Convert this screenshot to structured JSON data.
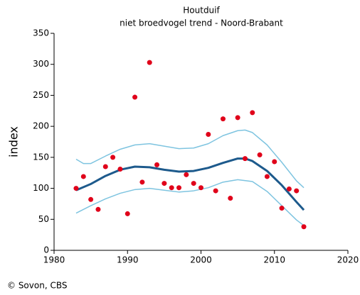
{
  "chart_data": {
    "type": "scatter",
    "title": "Houtduif",
    "subtitle": "niet broedvogel trend - Noord-Brabant",
    "y_label": "index",
    "source": "© Sovon, CBS",
    "xlim": [
      1980,
      2020
    ],
    "xticks": [
      1980,
      1990,
      2000,
      2010,
      2020
    ],
    "ylim": [
      0,
      350
    ],
    "yticks": [
      0,
      50,
      100,
      150,
      200,
      250,
      300,
      350
    ],
    "series": [
      {
        "style": "markers",
        "color": "#e0001a",
        "x": [
          1983,
          1984,
          1985,
          1986,
          1987,
          1988,
          1989,
          1990,
          1991,
          1992,
          1993,
          1994,
          1995,
          1996,
          1997,
          1998,
          1999,
          2000,
          2001,
          2002,
          2003,
          2004,
          2005,
          2006,
          2007,
          2008,
          2009,
          2010,
          2011,
          2012,
          2013,
          2014
        ],
        "values": [
          100,
          119,
          82,
          66,
          135,
          150,
          131,
          59,
          247,
          110,
          303,
          138,
          108,
          101,
          101,
          122,
          108,
          101,
          187,
          96,
          212,
          84,
          214,
          148,
          222,
          154,
          119,
          143,
          68,
          99,
          96,
          38
        ]
      },
      {
        "style": "line",
        "color": "#7ec4e0",
        "width": 1.5,
        "x": [
          1983,
          1984,
          1985,
          1987,
          1989,
          1991,
          1993,
          1995,
          1997,
          1999,
          2001,
          2003,
          2005,
          2006,
          2007,
          2009,
          2011,
          2013,
          2014
        ],
        "values": [
          147,
          140,
          140,
          152,
          163,
          170,
          172,
          168,
          164,
          165,
          172,
          185,
          193,
          194,
          190,
          170,
          142,
          112,
          101
        ]
      },
      {
        "style": "line",
        "color": "#7ec4e0",
        "width": 1.5,
        "x": [
          1983,
          1985,
          1987,
          1989,
          1991,
          1993,
          1995,
          1997,
          1999,
          2001,
          2003,
          2005,
          2007,
          2009,
          2011,
          2013,
          2014
        ],
        "values": [
          60,
          72,
          83,
          92,
          98,
          100,
          97,
          94,
          96,
          101,
          110,
          114,
          111,
          95,
          72,
          49,
          40
        ]
      },
      {
        "style": "line",
        "color": "#1d5a8c",
        "width": 3,
        "x": [
          1983,
          1985,
          1987,
          1989,
          1991,
          1993,
          1995,
          1997,
          1999,
          2001,
          2003,
          2005,
          2006,
          2007,
          2009,
          2011,
          2013,
          2014
        ],
        "values": [
          97,
          107,
          120,
          130,
          135,
          134,
          130,
          127,
          128,
          133,
          141,
          148,
          148,
          144,
          128,
          105,
          78,
          65
        ]
      }
    ]
  }
}
